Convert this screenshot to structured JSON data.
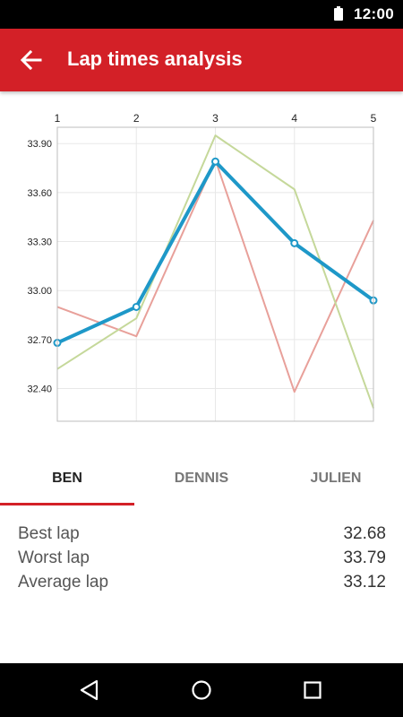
{
  "status_bar": {
    "time": "12:00",
    "battery_icon": "battery-full-icon"
  },
  "app_bar": {
    "title": "Lap times analysis",
    "back_icon": "arrow-back-icon",
    "color": "#d32027"
  },
  "chart_data": {
    "type": "line",
    "x": [
      1,
      2,
      3,
      4,
      5
    ],
    "x_tick_labels": [
      "1",
      "2",
      "3",
      "4",
      "5"
    ],
    "y_tick_labels": [
      "33.90",
      "33.60",
      "33.30",
      "33.00",
      "32.70",
      "32.40"
    ],
    "y_ticks": [
      33.9,
      33.6,
      33.3,
      33.0,
      32.7,
      32.4
    ],
    "ylim": [
      32.2,
      34.0
    ],
    "xlim": [
      1,
      5
    ],
    "grid": true,
    "series": [
      {
        "values": [
          32.9,
          32.72,
          33.8,
          32.38,
          33.43
        ],
        "color": "#e8a09a",
        "highlight": false
      },
      {
        "values": [
          32.52,
          32.83,
          33.95,
          33.62,
          32.28
        ],
        "color": "#c5d89a",
        "highlight": false
      },
      {
        "values": [
          32.68,
          32.9,
          33.79,
          33.29,
          32.94
        ],
        "color": "#1e98c8",
        "highlight": true
      }
    ]
  },
  "tabs": [
    {
      "label": "BEN",
      "active": true
    },
    {
      "label": "DENNIS",
      "active": false
    },
    {
      "label": "JULIEN",
      "active": false
    }
  ],
  "stats": [
    {
      "label": "Best lap",
      "value": "32.68"
    },
    {
      "label": "Worst lap",
      "value": "33.79"
    },
    {
      "label": "Average lap",
      "value": "33.12"
    }
  ],
  "nav_bar": {
    "back_icon": "nav-back-icon",
    "home_icon": "nav-home-icon",
    "recents_icon": "nav-recents-icon"
  }
}
